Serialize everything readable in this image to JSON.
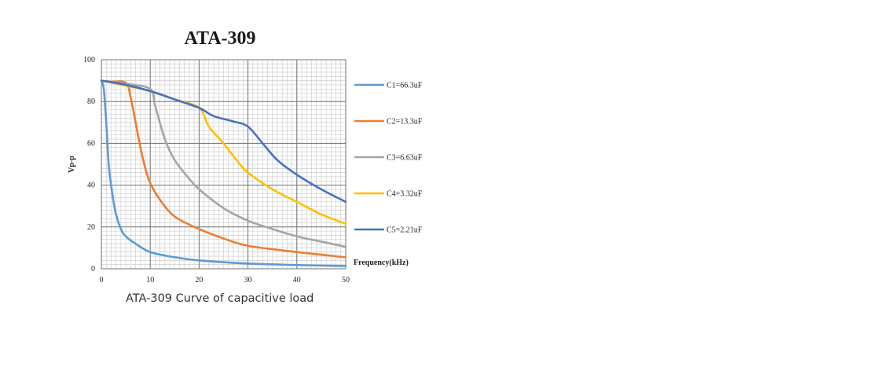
{
  "caption": "ATA-309 Curve of capacitive load",
  "chart_data": {
    "type": "line",
    "title": "ATA-309",
    "xlabel": "Frequency(kHz)",
    "ylabel": "Vp-p",
    "xlim": [
      0,
      50
    ],
    "ylim": [
      0,
      100
    ],
    "x_ticks": [
      0,
      10,
      20,
      30,
      40,
      50
    ],
    "y_ticks": [
      0,
      20,
      40,
      60,
      80,
      100
    ],
    "grid": true,
    "legend_position": "right",
    "series": [
      {
        "name": "C1=66.3uF",
        "color": "#5b9bd5",
        "points": [
          [
            0,
            90
          ],
          [
            0.5,
            86
          ],
          [
            1,
            70
          ],
          [
            1.5,
            50
          ],
          [
            2,
            40
          ],
          [
            2.5,
            32
          ],
          [
            3,
            26
          ],
          [
            4,
            19
          ],
          [
            5,
            15.5
          ],
          [
            7,
            12
          ],
          [
            10,
            8
          ],
          [
            15,
            5.5
          ],
          [
            20,
            4
          ],
          [
            30,
            2.5
          ],
          [
            40,
            1.8
          ],
          [
            50,
            1.3
          ]
        ]
      },
      {
        "name": "C2=13.3uF",
        "color": "#ed7d31",
        "points": [
          [
            0,
            90
          ],
          [
            2,
            89.5
          ],
          [
            5,
            89
          ],
          [
            6,
            82
          ],
          [
            7,
            70
          ],
          [
            8,
            58
          ],
          [
            9,
            48
          ],
          [
            10,
            41
          ],
          [
            12,
            33
          ],
          [
            15,
            25
          ],
          [
            20,
            19
          ],
          [
            25,
            14.5
          ],
          [
            30,
            11
          ],
          [
            40,
            8
          ],
          [
            50,
            5.5
          ]
        ]
      },
      {
        "name": "C3=6.63uF",
        "color": "#a5a5a5",
        "points": [
          [
            0,
            90
          ],
          [
            5,
            88.5
          ],
          [
            10,
            86
          ],
          [
            11,
            78
          ],
          [
            13,
            62
          ],
          [
            15,
            52
          ],
          [
            18,
            43
          ],
          [
            20,
            38
          ],
          [
            25,
            29
          ],
          [
            30,
            23
          ],
          [
            35,
            19
          ],
          [
            40,
            15.5
          ],
          [
            45,
            13
          ],
          [
            50,
            10.5
          ]
        ]
      },
      {
        "name": "C4=3.32uF",
        "color": "#ffc000",
        "points": [
          [
            0,
            90
          ],
          [
            10,
            85
          ],
          [
            15,
            81
          ],
          [
            20,
            77
          ],
          [
            22,
            68
          ],
          [
            25,
            60
          ],
          [
            28,
            51
          ],
          [
            30,
            46
          ],
          [
            35,
            38
          ],
          [
            40,
            32
          ],
          [
            45,
            26
          ],
          [
            50,
            21.5
          ]
        ]
      },
      {
        "name": "C5=2.21uF",
        "color": "#4472c4",
        "points": [
          [
            0,
            90
          ],
          [
            5,
            88
          ],
          [
            10,
            85
          ],
          [
            15,
            81
          ],
          [
            20,
            77
          ],
          [
            23,
            73
          ],
          [
            27,
            70.5
          ],
          [
            30,
            68
          ],
          [
            33,
            60
          ],
          [
            36,
            52
          ],
          [
            40,
            45
          ],
          [
            45,
            38
          ],
          [
            50,
            32
          ]
        ]
      }
    ]
  }
}
